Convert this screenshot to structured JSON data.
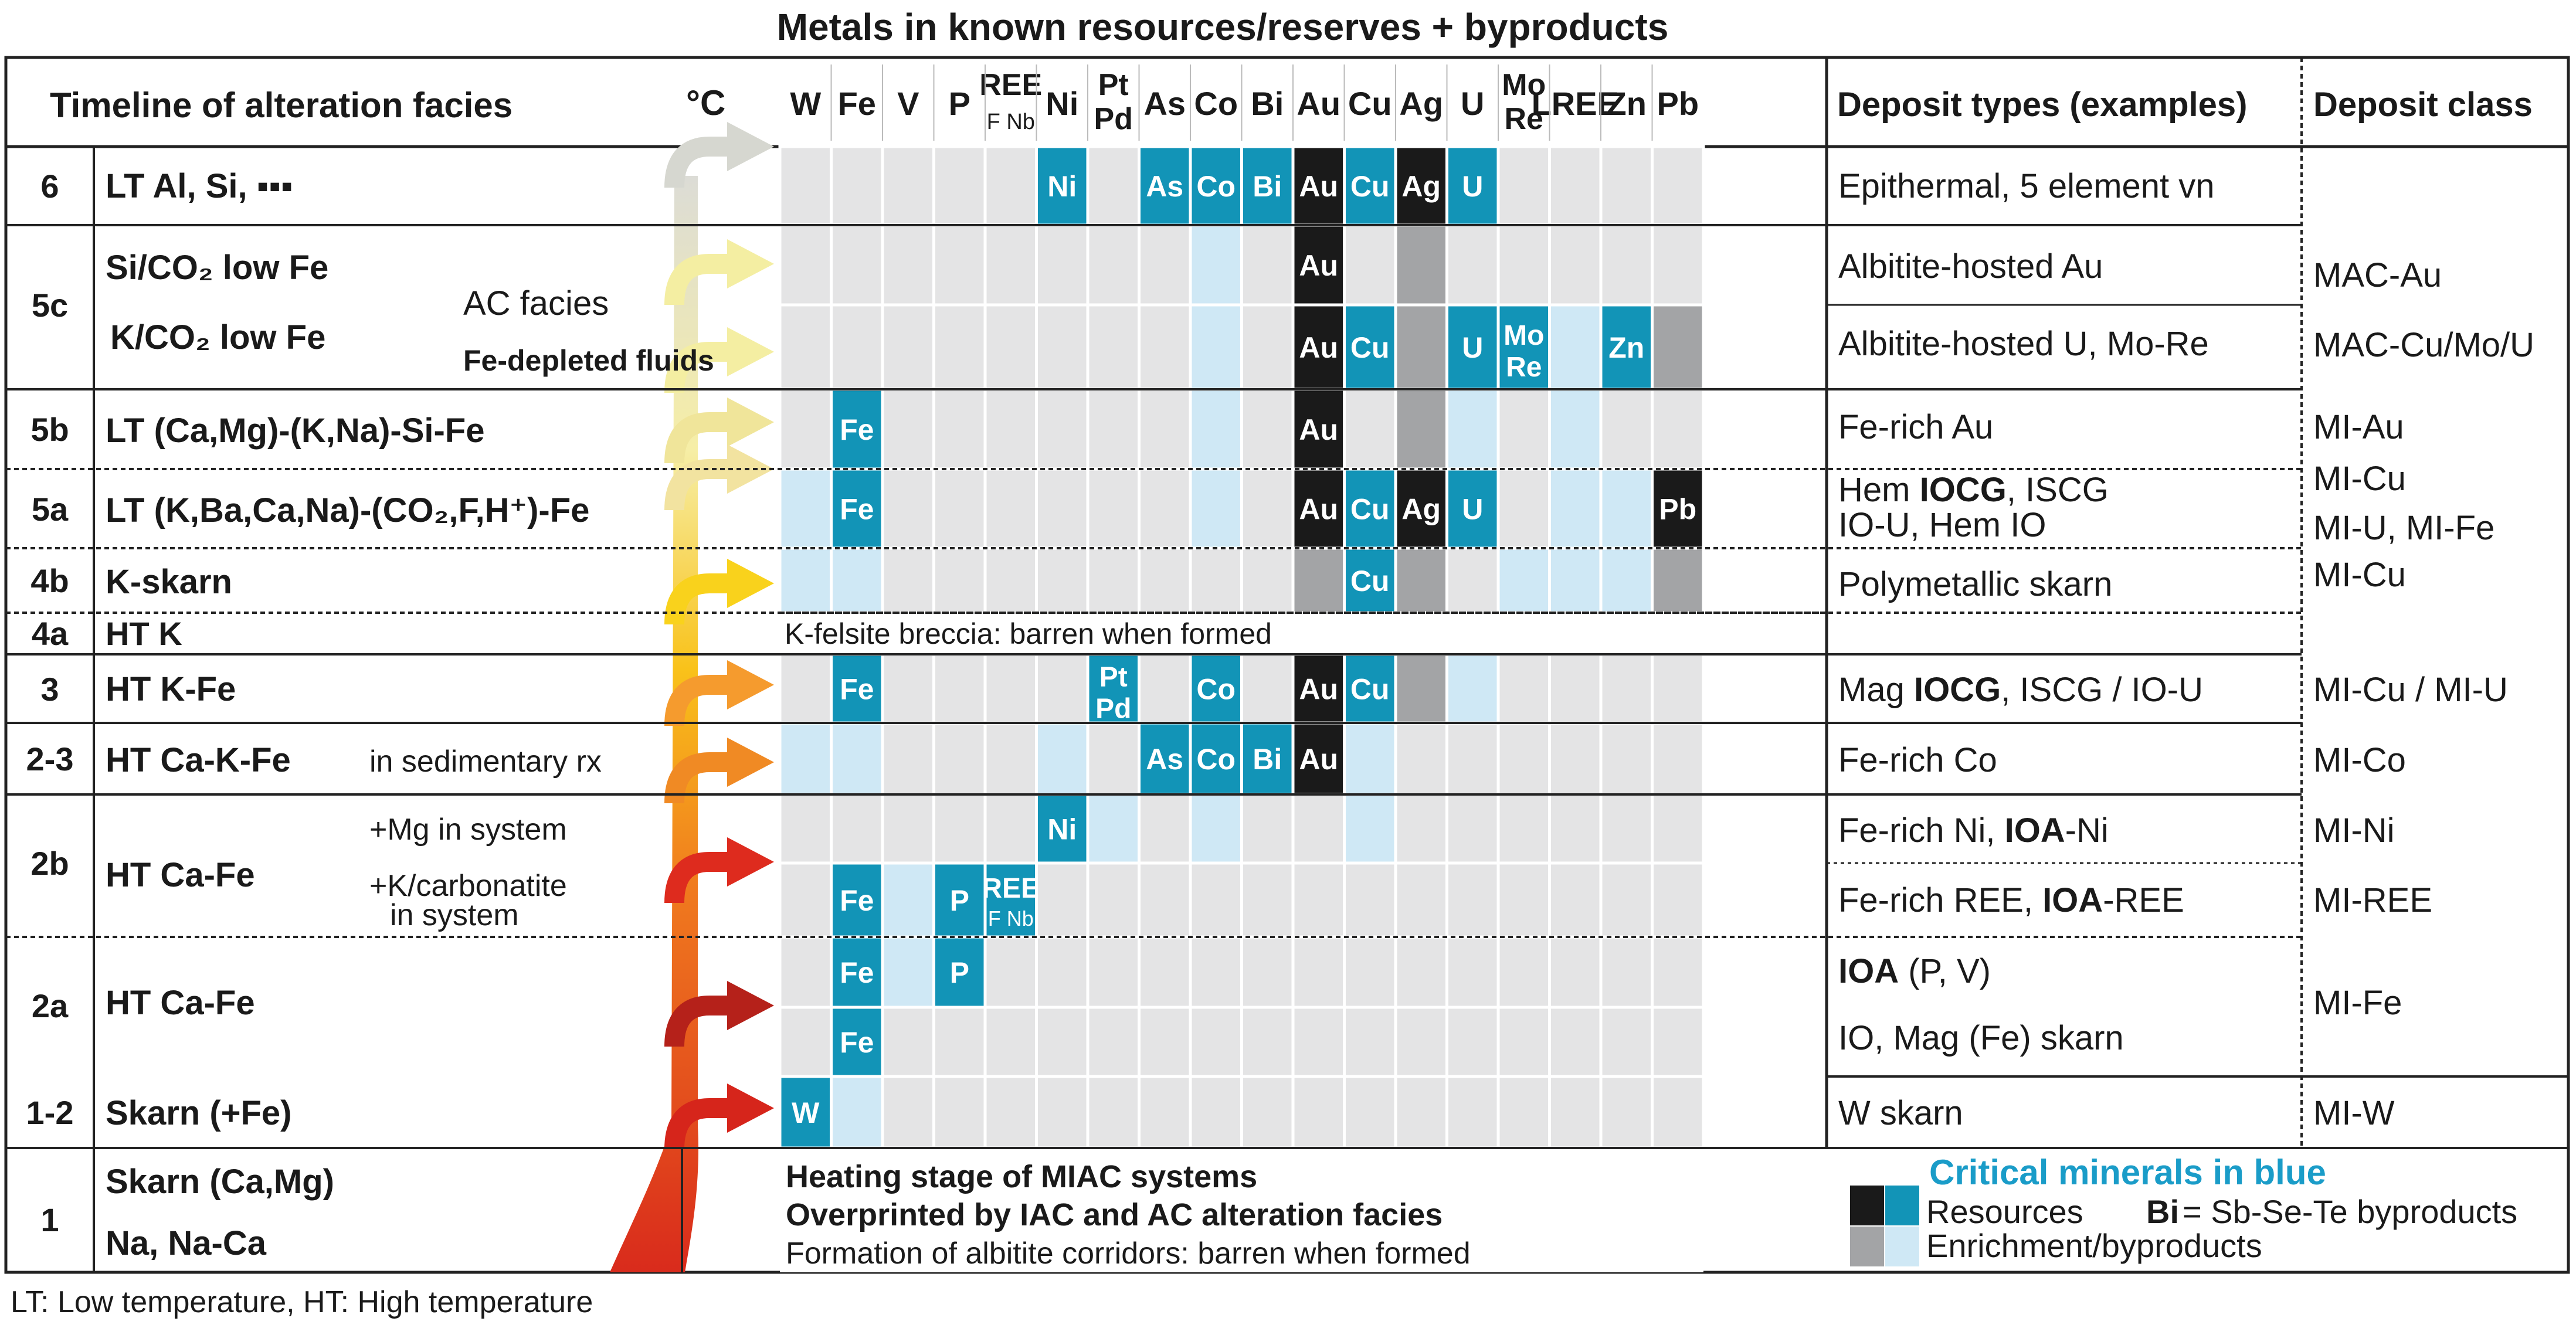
{
  "title": "Metals in known resources/reserves + byproducts",
  "footnote": "LT: Low temperature, HT: High temperature",
  "headers": {
    "timeline": "Timeline of alteration facies",
    "temp": "°C",
    "deposit_types": "Deposit types (examples)",
    "deposit_class": "Deposit class"
  },
  "metals": [
    {
      "key": "W",
      "label": "W"
    },
    {
      "key": "Fe",
      "label": "Fe"
    },
    {
      "key": "V",
      "label": "V"
    },
    {
      "key": "P",
      "label": "P"
    },
    {
      "key": "REE",
      "label": "REE",
      "sub": "F Nb"
    },
    {
      "key": "Ni",
      "label": "Ni"
    },
    {
      "key": "PtPd",
      "label": "Pt",
      "sub": "Pd"
    },
    {
      "key": "As",
      "label": "As"
    },
    {
      "key": "Co",
      "label": "Co"
    },
    {
      "key": "Bi",
      "label": "Bi"
    },
    {
      "key": "Au",
      "label": "Au"
    },
    {
      "key": "Cu",
      "label": "Cu"
    },
    {
      "key": "Ag",
      "label": "Ag"
    },
    {
      "key": "U",
      "label": "U"
    },
    {
      "key": "MoRe",
      "label": "Mo",
      "sub": "Re"
    },
    {
      "key": "LREE",
      "label": "LREE"
    },
    {
      "key": "Zn",
      "label": "Zn"
    },
    {
      "key": "Pb",
      "label": "Pb"
    }
  ],
  "stages": [
    {
      "id": "6",
      "label": "6",
      "facies": [
        "LT Al, Si, ▪▪▪"
      ]
    },
    {
      "id": "5c",
      "label": "5c",
      "facies": [
        "Si/CO₂ low Fe",
        "K/CO₂ low Fe"
      ],
      "notes": [
        "AC facies",
        "Fe-depleted fluids"
      ]
    },
    {
      "id": "5b",
      "label": "5b",
      "facies": [
        "LT (Ca,Mg)-(K,Na)-Si-Fe"
      ]
    },
    {
      "id": "5a",
      "label": "5a",
      "facies": [
        "LT (K,Ba,Ca,Na)-(CO₂,F,H⁺)-Fe"
      ]
    },
    {
      "id": "4b",
      "label": "4b",
      "facies": [
        "K-skarn"
      ]
    },
    {
      "id": "4a",
      "label": "4a",
      "facies": [
        "HT K"
      ],
      "span_note": "K-felsite breccia: barren when formed"
    },
    {
      "id": "3",
      "label": "3",
      "facies": [
        "HT K-Fe"
      ]
    },
    {
      "id": "2-3",
      "label": "2-3",
      "facies": [
        "HT Ca-K-Fe"
      ],
      "notes": [
        "in sedimentary rx"
      ]
    },
    {
      "id": "2b",
      "label": "2b",
      "facies": [
        "HT Ca-Fe"
      ],
      "notes": [
        "+Mg in system",
        "+K/carbonatite",
        "in system"
      ]
    },
    {
      "id": "2a",
      "label": "2a",
      "facies": [
        "HT Ca-Fe"
      ]
    },
    {
      "id": "1-2",
      "label": "1-2",
      "facies": [
        "Skarn (+Fe)"
      ]
    },
    {
      "id": "1",
      "label": "1",
      "facies": [
        "Skarn (Ca,Mg)",
        "Na, Na-Ca"
      ],
      "heating_notes": [
        "Heating stage of MIAC systems",
        "Overprinted by IAC and AC alteration facies",
        "Formation of albitite corridors: barren when formed"
      ]
    }
  ],
  "rows": [
    {
      "id": "r6",
      "deposit": "Epithermal, 5 element vn",
      "cells": {
        "Ni": "RC",
        "As": "RC",
        "Co": "RC",
        "Bi": "RC",
        "Au": "RN",
        "Cu": "RC",
        "Ag": "RN",
        "U": "RC"
      }
    },
    {
      "id": "r5c1",
      "deposit": "Albitite-hosted Au",
      "cells": {
        "Co": "EC",
        "Au": "RN",
        "Ag": "EN"
      }
    },
    {
      "id": "r5c2",
      "deposit": "Albitite-hosted U, Mo-Re",
      "cells": {
        "Co": "EC",
        "Au": "RN",
        "Cu": "RC",
        "Ag": "EN",
        "U": "RC",
        "MoRe": "RC",
        "LREE": "EC",
        "Zn": "RC",
        "Pb": "EN"
      }
    },
    {
      "id": "r5b",
      "deposit": "Fe-rich Au",
      "cells": {
        "Fe": "RC",
        "Co": "EC",
        "Au": "RN",
        "Ag": "EN",
        "U": "EC",
        "LREE": "EC"
      }
    },
    {
      "id": "r5a",
      "deposit": "Hem IOCG, ISCG / IO-U, Hem IO",
      "cells": {
        "W": "EC",
        "Fe": "RC",
        "Co": "EC",
        "Au": "RN",
        "Cu": "RC",
        "Ag": "RN",
        "U": "RC",
        "LREE": "EC",
        "Zn": "EC",
        "Pb": "RN"
      }
    },
    {
      "id": "r4b",
      "deposit": "Polymetallic skarn",
      "cells": {
        "W": "EC",
        "Fe": "EC",
        "Au": "EN",
        "Cu": "RC",
        "Ag": "EN",
        "MoRe": "EC",
        "LREE": "EC",
        "Zn": "EC",
        "Pb": "EN"
      }
    },
    {
      "id": "r3",
      "deposit": "Mag IOCG, ISCG / IO-U",
      "cells": {
        "Fe": "RC",
        "PtPd": "RC",
        "Co": "RC",
        "Au": "RN",
        "Cu": "RC",
        "Ag": "EN",
        "U": "EC"
      }
    },
    {
      "id": "r23",
      "deposit": "Fe-rich Co",
      "cells": {
        "W": "EC",
        "Fe": "EC",
        "Ni": "EC",
        "As": "RC",
        "Co": "RC",
        "Bi": "RC",
        "Au": "RN",
        "Cu": "EC"
      }
    },
    {
      "id": "r2b1",
      "deposit": "Fe-rich Ni, IOA-Ni",
      "cells": {
        "Ni": "RC",
        "PtPd": "EC",
        "Co": "EC",
        "Cu": "EC"
      }
    },
    {
      "id": "r2b2",
      "deposit": "Fe-rich REE, IOA-REE",
      "cells": {
        "Fe": "RC",
        "V": "EC",
        "P": "RC",
        "REE": "RC"
      }
    },
    {
      "id": "r2a1",
      "deposit": "IOA (P, V)",
      "cells": {
        "Fe": "RC",
        "V": "EC",
        "P": "RC"
      }
    },
    {
      "id": "r2a2",
      "deposit": "IO, Mag (Fe) skarn",
      "cells": {
        "Fe": "RC"
      }
    },
    {
      "id": "r12",
      "deposit": "W skarn",
      "cells": {
        "W": "RC",
        "Fe": "EC"
      }
    }
  ],
  "deposit_rich": {
    "r5a_line1_pre": "Hem ",
    "r5a_line1_bold": "IOCG",
    "r5a_line1_post": ", ISCG",
    "r5a_line2": "IO-U, Hem IO",
    "r3_pre": "Mag ",
    "r3_bold": "IOCG",
    "r3_post": ", ISCG / IO-U",
    "r2b1_pre": "Fe-rich Ni, ",
    "r2b1_bold": "IOA",
    "r2b1_post": "-Ni",
    "r2b2_pre": "Fe-rich REE, ",
    "r2b2_bold": "IOA",
    "r2b2_post": "-REE",
    "r2a1_bold": "IOA",
    "r2a1_post": " (P, V)"
  },
  "deposit_classes": [
    {
      "row": "r5c1",
      "label": "MAC-Au"
    },
    {
      "row": "r5c2",
      "label": "MAC-Cu/Mo/U"
    },
    {
      "row": "r5b",
      "label": "MI-Au"
    },
    {
      "row": "r5a",
      "label": "MI-Cu"
    },
    {
      "row": "r5a2",
      "label": "MI-U, MI-Fe"
    },
    {
      "row": "r4b",
      "label": "MI-Cu"
    },
    {
      "row": "r3",
      "label": "MI-Cu / MI-U"
    },
    {
      "row": "r23",
      "label": "MI-Co"
    },
    {
      "row": "r2b1",
      "label": "MI-Ni"
    },
    {
      "row": "r2b2",
      "label": "MI-REE"
    },
    {
      "row": "r2a",
      "label": "MI-Fe"
    },
    {
      "row": "r12",
      "label": "MI-W"
    }
  ],
  "legend": {
    "title": "Critical minerals in blue",
    "resources": "Resources",
    "bi_bold": "Bi",
    "bi_rest": " = Sb-Se-Te byproducts",
    "enrichment": "Enrichment/byproducts"
  },
  "colors": {
    "teal": "#1294b7",
    "black": "#1a1a1a",
    "light_blue": "#cfe8f5",
    "gray": "#a3a4a6",
    "bg_cell": "#e4e4e5",
    "legend_blue": "#1a9cc8"
  }
}
